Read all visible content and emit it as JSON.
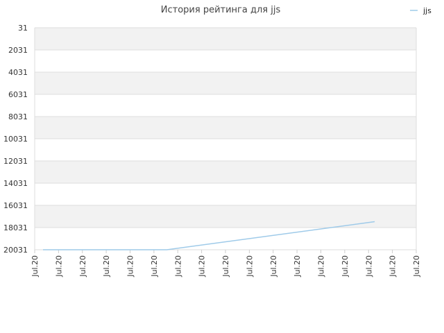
{
  "chart_data": {
    "type": "line",
    "title": "История рейтинга для jjs",
    "legend": {
      "position": "top-right",
      "entries": [
        "jjs"
      ]
    },
    "yaxis": {
      "reversed": true,
      "ylim": [
        31,
        20031
      ],
      "tick_labels": [
        "31",
        "2031",
        "4031",
        "6031",
        "8031",
        "10031",
        "12031",
        "14031",
        "16031",
        "18031",
        "20031"
      ]
    },
    "xaxis": {
      "tick_labels": [
        "Jul.20",
        "Jul.20",
        "Jul.20",
        "Jul.20",
        "Jul.20",
        "Jul.20",
        "Jul.20",
        "Jul.20",
        "Jul.20",
        "Jul.20",
        "Jul.20",
        "Jul.20",
        "Jul.20",
        "Jul.20",
        "Jul.20",
        "Jul.20",
        "Jul.20"
      ]
    },
    "grid": true,
    "series": [
      {
        "name": "jjs",
        "color": "#9ecae9",
        "points": [
          {
            "x": 0.0,
            "y": 20031
          },
          {
            "x": 5.6,
            "y": 20031
          },
          {
            "x": 15.0,
            "y": 17500
          }
        ]
      }
    ],
    "colors": {
      "band_alt": "#f2f2f2",
      "band": "#ffffff",
      "grid": "#dddddd"
    }
  }
}
